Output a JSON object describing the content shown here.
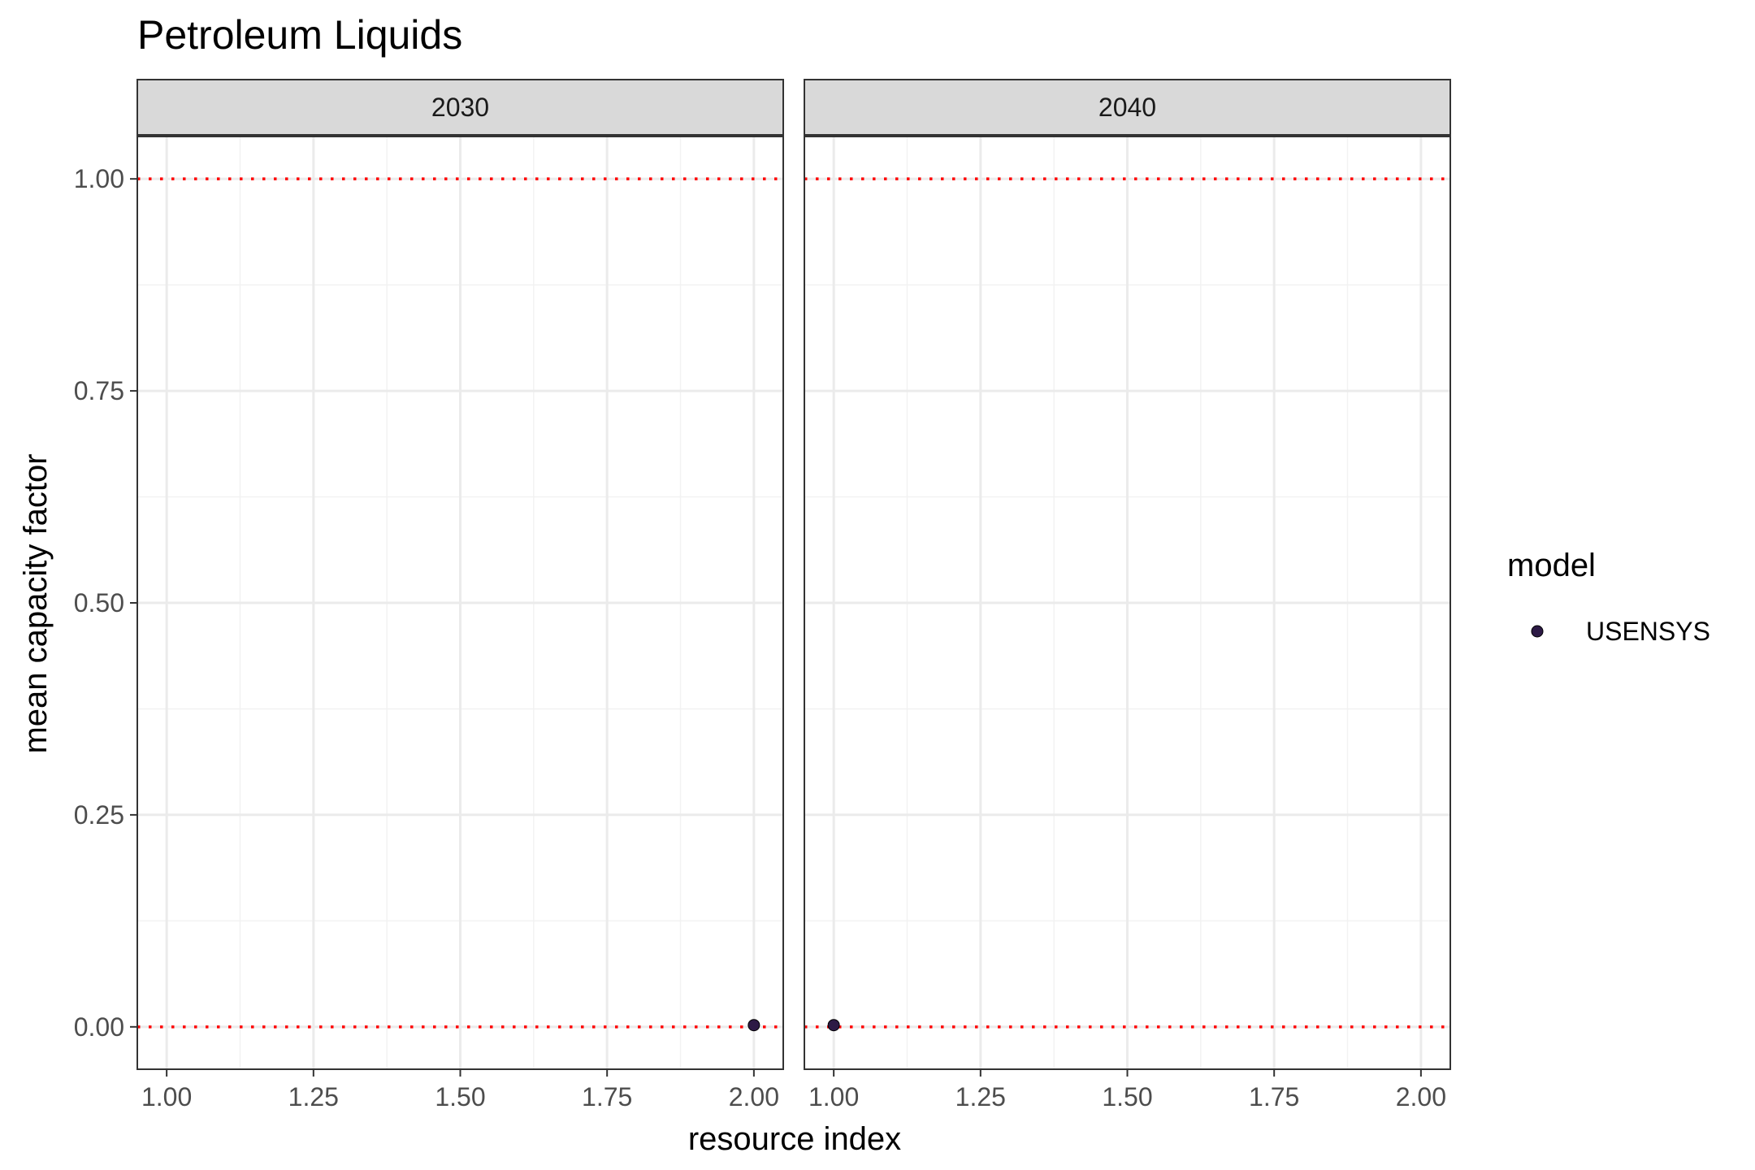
{
  "chart_data": {
    "type": "scatter",
    "title": "Petroleum Liquids",
    "xlabel": "resource index",
    "ylabel": "mean capacity factor",
    "xlim": [
      0.95,
      2.05
    ],
    "ylim": [
      -0.05,
      1.05
    ],
    "x_ticks": [
      "1.00",
      "1.25",
      "1.50",
      "1.75",
      "2.00"
    ],
    "x_tick_values": [
      1.0,
      1.25,
      1.5,
      1.75,
      2.0
    ],
    "y_ticks": [
      "0.00",
      "0.25",
      "0.50",
      "0.75",
      "1.00"
    ],
    "y_tick_values": [
      0.0,
      0.25,
      0.5,
      0.75,
      1.0
    ],
    "grid": true,
    "reference_lines": [
      {
        "y": 0.0,
        "color": "#ff0000",
        "style": "dotted"
      },
      {
        "y": 1.0,
        "color": "#ff0000",
        "style": "dotted"
      }
    ],
    "facets": [
      {
        "label": "2030",
        "points": [
          {
            "series": "USENSYS",
            "x": 2.0,
            "y": 0.002
          }
        ]
      },
      {
        "label": "2040",
        "points": [
          {
            "series": "USENSYS",
            "x": 1.0,
            "y": 0.002
          }
        ]
      }
    ],
    "legend": {
      "title": "model",
      "position": "right",
      "entries": [
        {
          "name": "USENSYS",
          "color": "#2d1a45"
        }
      ]
    },
    "colors": {
      "strip_fill": "#d9d9d9",
      "panel_border": "#333333",
      "grid_major": "#ebebeb",
      "grid_minor": "#f2f2f2",
      "tick_color": "#333333"
    }
  }
}
